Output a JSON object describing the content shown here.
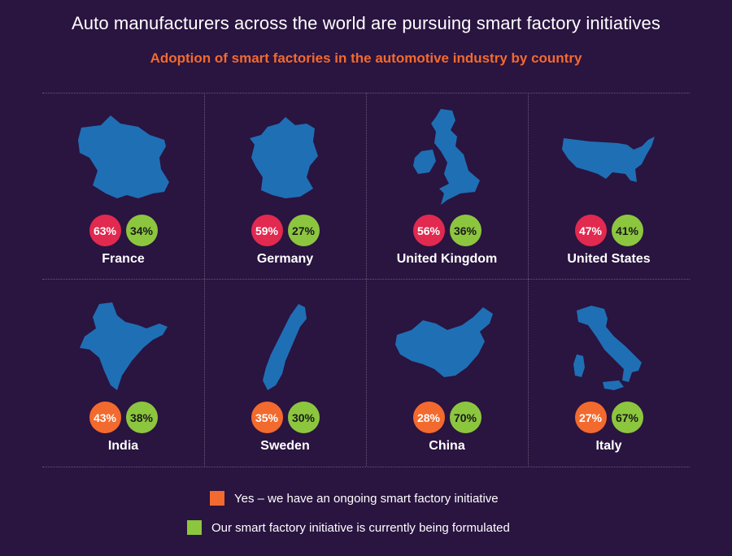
{
  "title": "Auto manufacturers across the world are pursuing smart factory initiatives",
  "subtitle": "Adoption of smart factories in the automotive industry by country",
  "colors": {
    "background": "#2a1440",
    "map": "#1f6fb5",
    "red": "#e2294f",
    "orange": "#f26a2e",
    "green": "#8cc63f"
  },
  "countries": [
    {
      "name": "France",
      "yes": "63%",
      "formulated": "34%",
      "yes_color": "red"
    },
    {
      "name": "Germany",
      "yes": "59%",
      "formulated": "27%",
      "yes_color": "red"
    },
    {
      "name": "United Kingdom",
      "yes": "56%",
      "formulated": "36%",
      "yes_color": "red"
    },
    {
      "name": "United States",
      "yes": "47%",
      "formulated": "41%",
      "yes_color": "red"
    },
    {
      "name": "India",
      "yes": "43%",
      "formulated": "38%",
      "yes_color": "orange"
    },
    {
      "name": "Sweden",
      "yes": "35%",
      "formulated": "30%",
      "yes_color": "orange"
    },
    {
      "name": "China",
      "yes": "28%",
      "formulated": "70%",
      "yes_color": "orange"
    },
    {
      "name": "Italy",
      "yes": "27%",
      "formulated": "67%",
      "yes_color": "orange"
    }
  ],
  "legend": {
    "yes": "Yes – we have an ongoing smart factory initiative",
    "formulated": "Our smart factory initiative is currently being formulated"
  }
}
